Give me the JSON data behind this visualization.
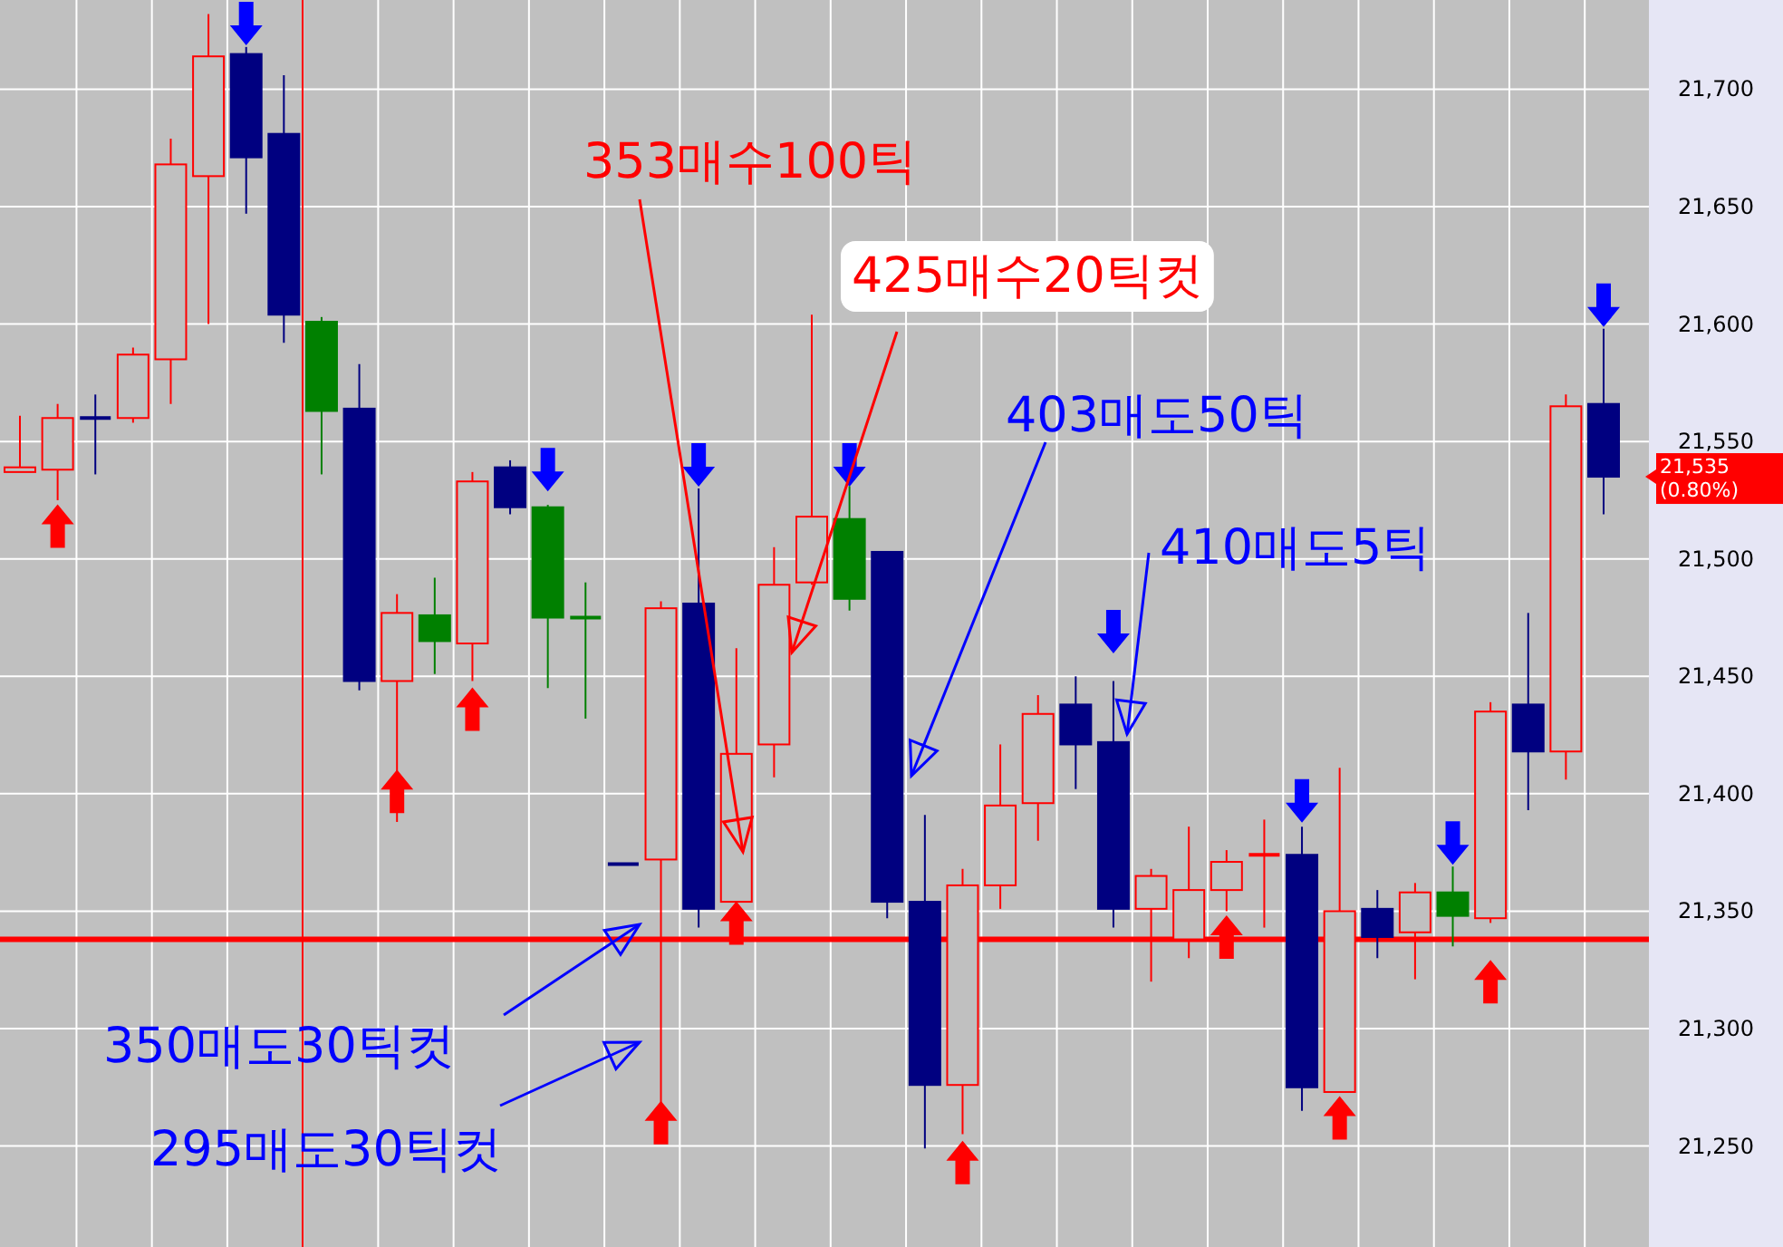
{
  "chart_data": {
    "type": "candlestick",
    "categories": [
      null,
      null,
      null,
      null,
      null,
      null,
      null,
      null,
      null,
      null,
      null,
      null,
      null,
      null,
      null,
      null,
      null,
      null,
      null,
      null,
      null,
      null,
      null,
      null,
      null,
      null,
      null,
      null,
      null,
      null,
      null,
      null,
      null,
      null,
      null,
      null,
      null,
      null,
      null,
      null,
      null,
      null,
      null
    ],
    "ohlc": [
      [
        21537,
        21561,
        21537,
        21539
      ],
      [
        21538,
        21566,
        21525,
        21560
      ],
      [
        21560,
        21570,
        21536,
        21560
      ],
      [
        21560,
        21590,
        21558,
        21587
      ],
      [
        21585,
        21679,
        21566,
        21668
      ],
      [
        21663,
        21732,
        21600,
        21714
      ],
      [
        21715,
        21718,
        21647,
        21671
      ],
      [
        21681,
        21706,
        21592,
        21604
      ],
      [
        21601,
        21603,
        21536,
        21563
      ],
      [
        21564,
        21583,
        21444,
        21448
      ],
      [
        21448,
        21485,
        21388,
        21477
      ],
      [
        21476,
        21492,
        21451,
        21465
      ],
      [
        21464,
        21537,
        21448,
        21533
      ],
      [
        21539,
        21542,
        21519,
        21522
      ],
      [
        21522,
        21523,
        21445,
        21475
      ],
      [
        21475,
        21490,
        21432,
        21475
      ],
      [
        21370,
        21370,
        21370,
        21370
      ],
      [
        21372,
        21482,
        21268,
        21479
      ],
      [
        21481,
        21530,
        21343,
        21351
      ],
      [
        21354,
        21462,
        21351,
        21417
      ],
      [
        21421,
        21505,
        21407,
        21489
      ],
      [
        21490,
        21604,
        21489,
        21518
      ],
      [
        21517,
        21531,
        21478,
        21483
      ],
      [
        21503,
        21503,
        21347,
        21354
      ],
      [
        21354,
        21391,
        21249,
        21276
      ],
      [
        21276,
        21368,
        21255,
        21361
      ],
      [
        21361,
        21421,
        21351,
        21395
      ],
      [
        21396,
        21442,
        21380,
        21434
      ],
      [
        21438,
        21450,
        21402,
        21421
      ],
      [
        21422,
        21448,
        21343,
        21351
      ],
      [
        21351,
        21368,
        21320,
        21365
      ],
      [
        21338,
        21386,
        21330,
        21359
      ],
      [
        21359,
        21376,
        21350,
        21371
      ],
      [
        21374,
        21389,
        21343,
        21374
      ],
      [
        21374,
        21386,
        21265,
        21275
      ],
      [
        21273,
        21411,
        21273,
        21350
      ],
      [
        21351,
        21359,
        21330,
        21339
      ],
      [
        21341,
        21362,
        21321,
        21358
      ],
      [
        21358,
        21369,
        21335,
        21348
      ],
      [
        21347,
        21439,
        21345,
        21435
      ],
      [
        21438,
        21477,
        21393,
        21418
      ],
      [
        21418,
        21570,
        21406,
        21565
      ],
      [
        21566,
        21598,
        21519,
        21535
      ]
    ],
    "colors": [
      "#ff0000",
      "#ff0000",
      "#000080",
      "#ff0000",
      "#ff0000",
      "#ff0000",
      "#000080",
      "#000080",
      "#008000",
      "#000080",
      "#ff0000",
      "#008000",
      "#ff0000",
      "#000080",
      "#008000",
      "#008000",
      "#000080",
      "#ff0000",
      "#000080",
      "#ff0000",
      "#ff0000",
      "#ff0000",
      "#008000",
      "#000080",
      "#000080",
      "#ff0000",
      "#ff0000",
      "#ff0000",
      "#000080",
      "#000080",
      "#ff0000",
      "#ff0000",
      "#ff0000",
      "#ff0000",
      "#000080",
      "#ff0000",
      "#000080",
      "#ff0000",
      "#008000",
      "#ff0000",
      "#000080",
      "#ff0000",
      "#000080"
    ],
    "series": [
      {
        "type": "scatter",
        "color": "#ff0000",
        "values": [
          null,
          21514,
          null,
          null,
          null,
          null,
          null,
          null,
          null,
          null,
          21401,
          null,
          21436,
          null,
          null,
          null,
          null,
          21260,
          null,
          21345,
          null,
          null,
          null,
          null,
          null,
          21243,
          null,
          null,
          null,
          null,
          null,
          null,
          21339,
          null,
          null,
          21262,
          null,
          null,
          null,
          21320,
          null,
          null,
          null
        ]
      },
      {
        "type": "scatter",
        "color": "#0000ff",
        "values": [
          null,
          null,
          null,
          null,
          null,
          null,
          21728,
          null,
          null,
          null,
          null,
          null,
          null,
          null,
          21538,
          null,
          null,
          null,
          21540,
          null,
          null,
          null,
          21540,
          null,
          null,
          null,
          null,
          null,
          null,
          21469,
          null,
          null,
          null,
          null,
          21397,
          null,
          null,
          null,
          21379,
          null,
          null,
          null,
          21608
        ]
      }
    ],
    "ylim": [
      21207,
      21738
    ],
    "yticks": [
      {
        "value": 21250,
        "label": "21,250"
      },
      {
        "value": 21300,
        "label": "21,300"
      },
      {
        "value": 21350,
        "label": "21,350"
      },
      {
        "value": 21400,
        "label": "21,400"
      },
      {
        "value": 21450,
        "label": "21,450"
      },
      {
        "value": 21500,
        "label": "21,500"
      },
      {
        "value": 21550,
        "label": "21,550"
      },
      {
        "value": 21600,
        "label": "21,600"
      },
      {
        "value": 21650,
        "label": "21,650"
      },
      {
        "value": 21700,
        "label": "21,700"
      }
    ],
    "grid": true,
    "ref_lines": [
      {
        "axis": "y",
        "value": 21338,
        "color": "#ff0000"
      }
    ],
    "annotations": [
      "353매수100틱",
      "425매수20틱컷",
      "403매도50틱",
      "410매도5틱",
      "350매도30틱컷",
      "295매도30틱컷",
      "21,535 (0.80%)"
    ]
  }
}
